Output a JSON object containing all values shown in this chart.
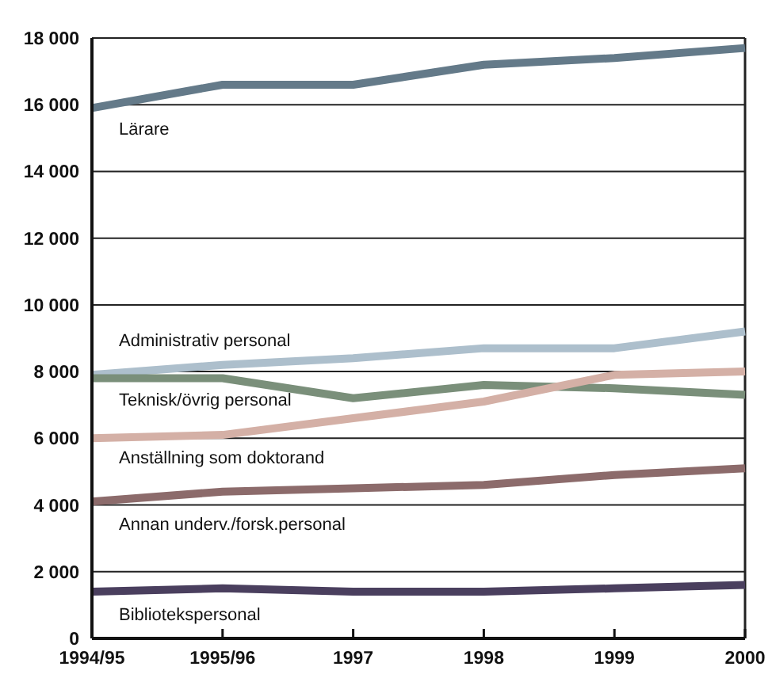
{
  "chart_data": {
    "type": "line",
    "categories": [
      "1994/95",
      "1995/96",
      "1997",
      "1998",
      "1999",
      "2000"
    ],
    "series": [
      {
        "name": "Lärare",
        "color": "#647a89",
        "values": [
          15900,
          16600,
          16600,
          17200,
          17400,
          17700
        ]
      },
      {
        "name": "Administrativ personal",
        "color": "#adbfcc",
        "values": [
          7900,
          8200,
          8400,
          8700,
          8700,
          9200
        ]
      },
      {
        "name": "Teknisk/övrig personal",
        "color": "#7a8f7a",
        "values": [
          7800,
          7800,
          7200,
          7600,
          7500,
          7300
        ]
      },
      {
        "name": "Anställning som doktorand",
        "color": "#d4b0a6",
        "values": [
          6000,
          6100,
          6600,
          7100,
          7900,
          8000
        ]
      },
      {
        "name": "Annan underv./forsk.personal",
        "color": "#8c6b6b",
        "values": [
          4100,
          4400,
          4500,
          4600,
          4900,
          5100
        ]
      },
      {
        "name": "Bibliotekspersonal",
        "color": "#4a3f5e",
        "values": [
          1400,
          1500,
          1400,
          1400,
          1500,
          1600
        ]
      }
    ],
    "ylim": [
      0,
      18000
    ],
    "yticks": [
      0,
      {
        "value": 2000,
        "label": "2 000"
      },
      {
        "value": 4000,
        "label": "4 000"
      },
      {
        "value": 6000,
        "label": "6 000"
      },
      {
        "value": 8000,
        "label": "8 000"
      },
      {
        "value": 10000,
        "label": "10 000"
      },
      {
        "value": 12000,
        "label": "12 000"
      },
      {
        "value": 14000,
        "label": "14 000"
      },
      {
        "value": 16000,
        "label": "16 000"
      },
      {
        "value": 18000,
        "label": "18 000"
      }
    ],
    "grid": "y",
    "marker": "none",
    "line_style": "solid"
  }
}
